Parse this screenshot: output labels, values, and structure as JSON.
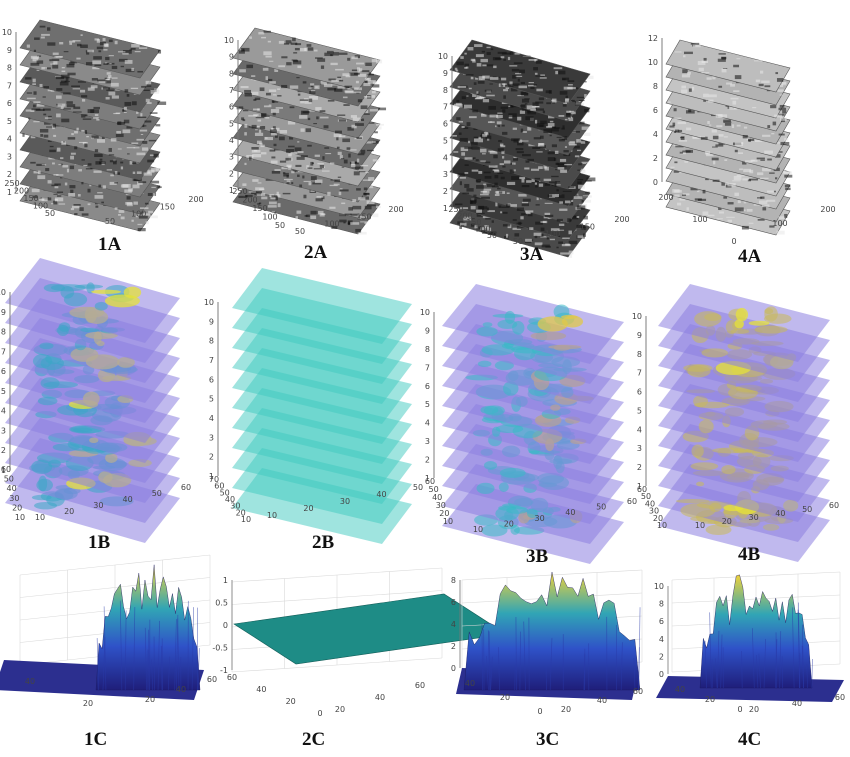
{
  "figure": {
    "panels": [
      {
        "id": "1A",
        "label": "1A",
        "z_ticks": [
          "1",
          "2",
          "3",
          "4",
          "5",
          "6",
          "7",
          "8",
          "9",
          "10"
        ],
        "y_ticks": [
          "250",
          "200",
          "150",
          "100",
          "50"
        ],
        "x_ticks": [
          "50",
          "100",
          "150",
          "200"
        ]
      },
      {
        "id": "2A",
        "label": "2A",
        "z_ticks": [
          "1",
          "2",
          "3",
          "4",
          "5",
          "6",
          "7",
          "8",
          "9",
          "10"
        ],
        "y_ticks": [
          "250",
          "200",
          "150",
          "100",
          "50"
        ],
        "x_ticks": [
          "50",
          "100",
          "150",
          "200"
        ]
      },
      {
        "id": "3A",
        "label": "3A",
        "z_ticks": [
          "1",
          "2",
          "3",
          "4",
          "5",
          "6",
          "7",
          "8",
          "9",
          "10"
        ],
        "y_ticks": [
          "250",
          "200",
          "150",
          "100",
          "50"
        ],
        "x_ticks": [
          "50",
          "100",
          "150",
          "200"
        ]
      },
      {
        "id": "4A",
        "label": "4A",
        "z_ticks": [
          "0",
          "2",
          "4",
          "6",
          "8",
          "10",
          "12"
        ],
        "y_ticks": [
          "200",
          "100",
          "0"
        ],
        "x_ticks": [
          "100",
          "200"
        ]
      },
      {
        "id": "1B",
        "label": "1B",
        "z_ticks": [
          "1",
          "2",
          "3",
          "4",
          "5",
          "6",
          "7",
          "8",
          "9",
          "10"
        ],
        "y_ticks": [
          "60",
          "50",
          "40",
          "30",
          "20",
          "10"
        ],
        "x_ticks": [
          "10",
          "20",
          "30",
          "40",
          "50",
          "60"
        ]
      },
      {
        "id": "2B",
        "label": "2B",
        "z_ticks": [
          "1",
          "2",
          "3",
          "4",
          "5",
          "6",
          "7",
          "8",
          "9",
          "10"
        ],
        "y_ticks": [
          "70",
          "60",
          "50",
          "40",
          "30",
          "20",
          "10"
        ],
        "x_ticks": [
          "10",
          "20",
          "30",
          "40",
          "50"
        ]
      },
      {
        "id": "3B",
        "label": "3B",
        "z_ticks": [
          "1",
          "2",
          "3",
          "4",
          "5",
          "6",
          "7",
          "8",
          "9",
          "10"
        ],
        "y_ticks": [
          "60",
          "50",
          "40",
          "30",
          "20",
          "10"
        ],
        "x_ticks": [
          "10",
          "20",
          "30",
          "40",
          "50",
          "60"
        ]
      },
      {
        "id": "4B",
        "label": "4B",
        "z_ticks": [
          "1",
          "2",
          "3",
          "4",
          "5",
          "6",
          "7",
          "8",
          "9",
          "10"
        ],
        "y_ticks": [
          "60",
          "50",
          "40",
          "30",
          "20",
          "10"
        ],
        "x_ticks": [
          "10",
          "20",
          "30",
          "40",
          "50",
          "60"
        ]
      },
      {
        "id": "1C",
        "label": "1C",
        "y_ticks": [
          "40",
          "20"
        ],
        "x_ticks": [
          "20",
          "40",
          "60"
        ]
      },
      {
        "id": "2C",
        "label": "2C",
        "z_ticks": [
          "-1",
          "-0.5",
          "0",
          "0.5",
          "1"
        ],
        "y_ticks": [
          "60",
          "40",
          "20",
          "0"
        ],
        "x_ticks": [
          "20",
          "40",
          "60"
        ]
      },
      {
        "id": "3C",
        "label": "3C",
        "z_ticks": [
          "0",
          "2",
          "4",
          "6",
          "8"
        ],
        "y_ticks": [
          "40",
          "20",
          "0"
        ],
        "x_ticks": [
          "20",
          "40",
          "60"
        ]
      },
      {
        "id": "4C",
        "label": "4C",
        "z_ticks": [
          "0",
          "2",
          "4",
          "6",
          "8",
          "10"
        ],
        "y_ticks": [
          "40",
          "20",
          "0"
        ],
        "x_ticks": [
          "20",
          "40",
          "60"
        ]
      }
    ]
  },
  "colors": {
    "stack_grey_dark": "#3a3a3a",
    "stack_grey_mid": "#8a8a8a",
    "stack_grey_light": "#b8b8b8",
    "layer_purple": "#8c7fe0",
    "layer_blue": "#4a4fc4",
    "layer_teal": "#3fc9c0",
    "highlight_yellow": "#e6e13a",
    "surface_navy": "#2c2f8f",
    "surface_blue": "#3a5ed0",
    "surface_cyan": "#3fb3b5",
    "surface_yellow": "#e8c93a",
    "flat_teal": "#1e8c86"
  }
}
